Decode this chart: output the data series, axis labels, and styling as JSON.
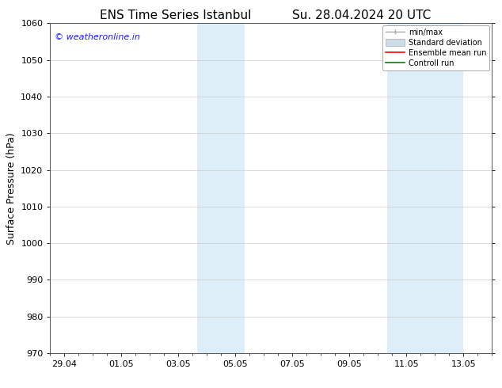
{
  "title": "ENS Time Series Istanbul",
  "subtitle": "Su. 28.04.2024 20 UTC",
  "ylabel": "Surface Pressure (hPa)",
  "ylim": [
    970,
    1060
  ],
  "yticks": [
    970,
    980,
    990,
    1000,
    1010,
    1020,
    1030,
    1040,
    1050,
    1060
  ],
  "x_tick_labels": [
    "29.04",
    "01.05",
    "03.05",
    "05.05",
    "07.05",
    "09.05",
    "11.05",
    "13.05"
  ],
  "x_tick_positions": [
    0,
    2,
    4,
    6,
    8,
    10,
    12,
    14
  ],
  "xlim": [
    -0.5,
    15.0
  ],
  "shaded_regions": [
    {
      "x_start": 4.67,
      "x_end": 6.33
    },
    {
      "x_start": 11.33,
      "x_end": 14.0
    }
  ],
  "shaded_color": "#ddeef8",
  "background_color": "#ffffff",
  "watermark_text": "© weatheronline.in",
  "watermark_color": "#1a1aff",
  "legend_labels": [
    "min/max",
    "Standard deviation",
    "Ensemble mean run",
    "Controll run"
  ],
  "legend_line_colors": [
    "#999999",
    "#bbccdd",
    "#ff0000",
    "#008000"
  ],
  "grid_color": "#cccccc",
  "spine_color": "#555555",
  "tick_color": "#000000",
  "title_fontsize": 11,
  "label_fontsize": 8,
  "watermark_fontsize": 8,
  "legend_fontsize": 7
}
